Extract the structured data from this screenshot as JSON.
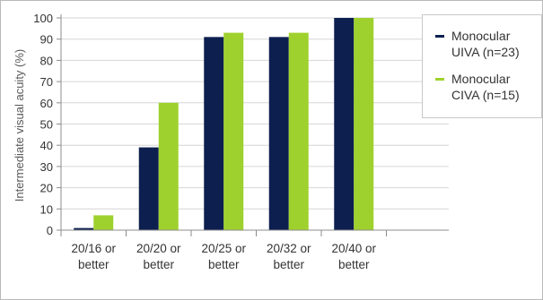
{
  "chart_data": {
    "type": "bar",
    "ylabel": "Intermediate visual acuity (%)",
    "xlabel": "",
    "ylim": [
      0,
      100
    ],
    "yticks": [
      0,
      10,
      20,
      30,
      40,
      50,
      60,
      70,
      80,
      90,
      100
    ],
    "categories": [
      "20/16 or better",
      "20/20 or better",
      "20/25 or better",
      "20/32 or better",
      "20/40 or better"
    ],
    "series": [
      {
        "name": "Monocular UIVA (n=23)",
        "color": "#0d1f4f",
        "values": [
          1,
          39,
          91,
          91,
          100
        ]
      },
      {
        "name": "Monocular CIVA (n=15)",
        "color": "#9fd12e",
        "values": [
          7,
          60,
          93,
          93,
          100
        ]
      }
    ],
    "grid": true,
    "legend_position": "right"
  }
}
